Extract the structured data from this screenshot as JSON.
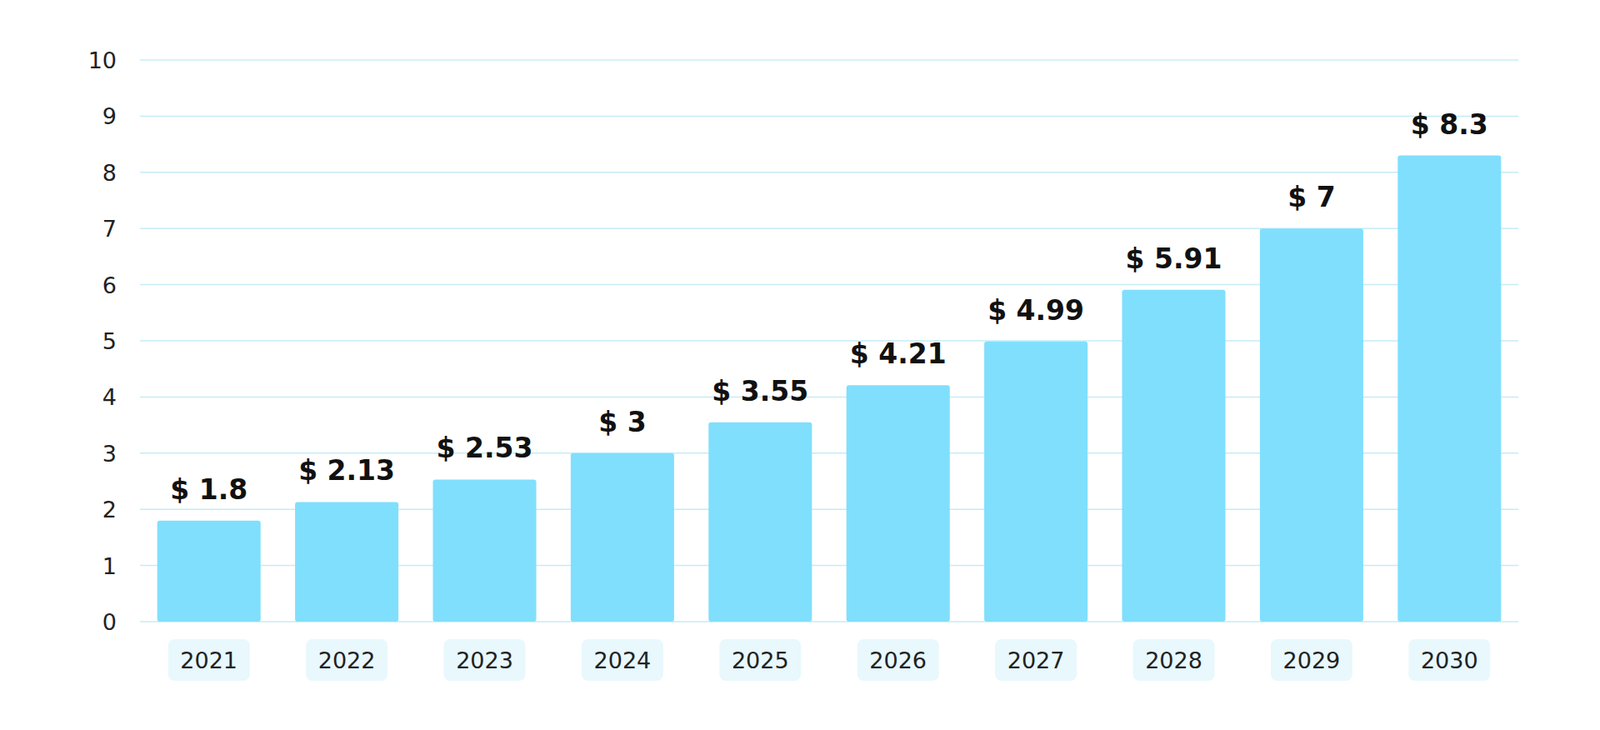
{
  "chart_data": {
    "type": "bar",
    "categories": [
      "2021",
      "2022",
      "2023",
      "2024",
      "2025",
      "2026",
      "2027",
      "2028",
      "2029",
      "2030"
    ],
    "values": [
      1.8,
      2.13,
      2.53,
      3,
      3.55,
      4.21,
      4.99,
      5.91,
      7,
      8.3
    ],
    "value_labels": [
      "$ 1.8",
      "$ 2.13",
      "$ 2.53",
      "$ 3",
      "$ 3.55",
      "$ 4.21",
      "$ 4.99",
      "$ 5.91",
      "$ 7",
      "$ 8.3"
    ],
    "color": "#80dffd",
    "ylim": [
      0,
      10
    ],
    "yticks": [
      0,
      1,
      2,
      3,
      4,
      5,
      6,
      7,
      8,
      9,
      10
    ],
    "grid": true,
    "data_labels": true
  }
}
